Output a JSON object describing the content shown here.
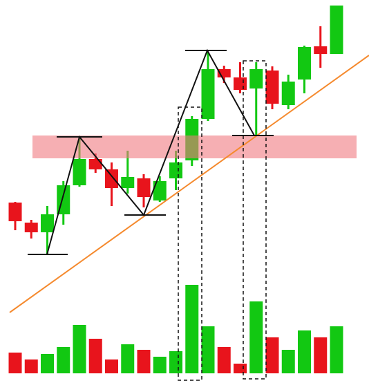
{
  "chart_data": {
    "type": "candlestick",
    "open": [
      107,
      78,
      64,
      90,
      132,
      170,
      155,
      128,
      142,
      110,
      142,
      168,
      228,
      300,
      288,
      272,
      298,
      248,
      285,
      333,
      322
    ],
    "close": [
      80,
      64,
      90,
      132,
      170,
      155,
      128,
      144,
      115,
      138,
      165,
      228,
      300,
      288,
      270,
      300,
      250,
      282,
      332,
      322,
      392
    ],
    "high": [
      108,
      82,
      102,
      138,
      202,
      178,
      165,
      182,
      148,
      145,
      182,
      232,
      325,
      305,
      310,
      310,
      304,
      292,
      334,
      362,
      392
    ],
    "low": [
      67,
      55,
      32,
      75,
      130,
      150,
      102,
      120,
      100,
      108,
      125,
      160,
      225,
      280,
      265,
      205,
      242,
      242,
      265,
      302,
      322
    ],
    "ylim": [
      0,
      400
    ],
    "volume": [
      30,
      20,
      28,
      38,
      70,
      50,
      20,
      42,
      34,
      24,
      32,
      128,
      68,
      38,
      14,
      104,
      52,
      34,
      62,
      52,
      68
    ],
    "volume_lim": [
      0,
      140
    ],
    "up_color": "#12c812",
    "down_color": "#e8141c"
  }
}
